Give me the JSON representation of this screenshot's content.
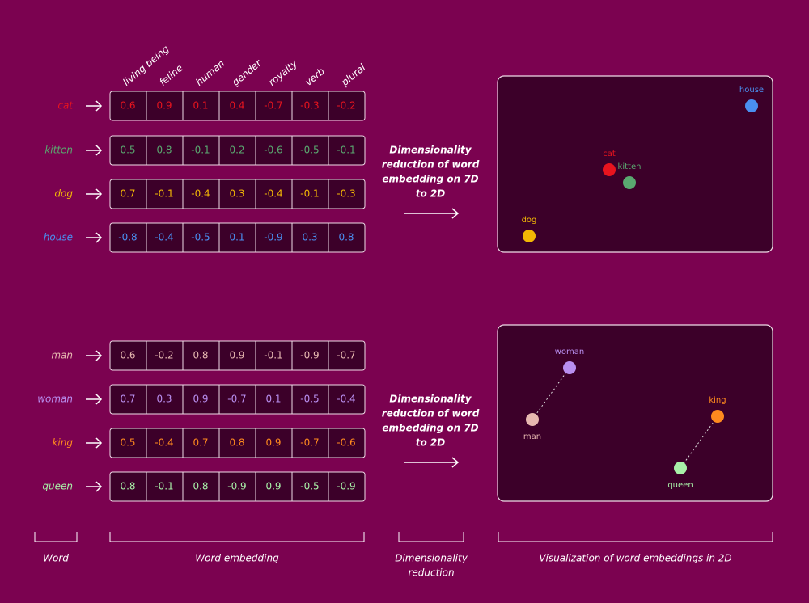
{
  "columns": [
    "living being",
    "feline",
    "human",
    "gender",
    "royalty",
    "verb",
    "plural"
  ],
  "groups": [
    {
      "rows": [
        {
          "word": "cat",
          "color": "#e8141e",
          "values": [
            0.6,
            0.9,
            0.1,
            0.4,
            -0.7,
            -0.3,
            -0.2
          ]
        },
        {
          "word": "kitten",
          "color": "#5aa870",
          "values": [
            0.5,
            0.8,
            -0.1,
            0.2,
            -0.6,
            -0.5,
            -0.1
          ]
        },
        {
          "word": "dog",
          "color": "#f2b705",
          "values": [
            0.7,
            -0.1,
            -0.4,
            0.3,
            -0.4,
            -0.1,
            -0.3
          ]
        },
        {
          "word": "house",
          "color": "#4a8ff0",
          "values": [
            -0.8,
            -0.4,
            -0.5,
            0.1,
            -0.9,
            0.3,
            0.8
          ]
        }
      ],
      "arrow_text": [
        "Dimensionality",
        "reduction of word",
        "embedding on 7D",
        "to 2D"
      ],
      "points": [
        "cat",
        "kitten",
        "dog",
        "house"
      ]
    },
    {
      "rows": [
        {
          "word": "man",
          "color": "#e6b8b0",
          "values": [
            0.6,
            -0.2,
            0.8,
            0.9,
            -0.1,
            -0.9,
            -0.7
          ]
        },
        {
          "word": "woman",
          "color": "#b98ff0",
          "values": [
            0.7,
            0.3,
            0.9,
            -0.7,
            0.1,
            -0.5,
            -0.4
          ]
        },
        {
          "word": "king",
          "color": "#ff8a1e",
          "values": [
            0.5,
            -0.4,
            0.7,
            0.8,
            0.9,
            -0.7,
            -0.6
          ]
        },
        {
          "word": "queen",
          "color": "#a8f0a8",
          "values": [
            0.8,
            -0.1,
            0.8,
            -0.9,
            0.9,
            -0.5,
            -0.9
          ]
        }
      ],
      "arrow_text": [
        "Dimensionality",
        "reduction of word",
        "embedding on 7D",
        "to 2D"
      ],
      "points": [
        "man",
        "woman",
        "king",
        "queen"
      ]
    }
  ],
  "footer": [
    [
      "Word"
    ],
    [
      "Word embedding"
    ],
    [
      "Dimensionality",
      "reduction"
    ],
    [
      "Visualization of word embeddings in 2D"
    ]
  ]
}
